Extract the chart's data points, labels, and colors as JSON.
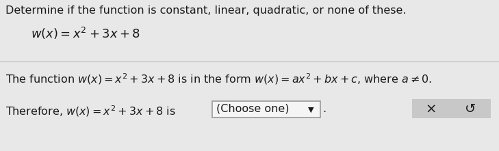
{
  "bg_color": "#e8e8e8",
  "text_color": "#1a1a1a",
  "title_text": "Determine if the function is constant, linear, quadratic, or none of these.",
  "title_fontsize": 11.5,
  "eq1_text": "$w\\left(x\\right)=x^{2}+3x+8$",
  "eq1_fontsize": 13,
  "body_fontsize": 11.5,
  "body_str": "The function $w\\left(x\\right)=x^{2}+3x+8$ is in the form $w\\left(x\\right)=ax^{2}+bx+c$, where $a\\neq 0$.",
  "therefore_str": "Therefore, $w\\left(x\\right)=x^{2}+3x+8$ is ",
  "dropdown_text": "(Choose one)",
  "dropdown_bg": "#f5f5f5",
  "dropdown_border": "#999999",
  "x_button_text": "×",
  "undo_button_text": "↺",
  "button_bg": "#c8c8c8",
  "separator_color": "#bbbbbb",
  "fig_width": 7.29,
  "fig_height": 2.21,
  "dpi": 100
}
